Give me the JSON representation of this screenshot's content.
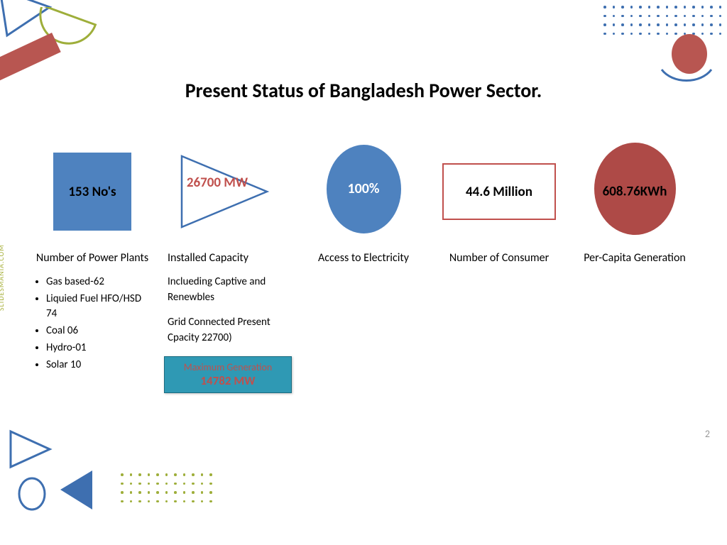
{
  "title": "Present Status of Bangladesh Power Sector.",
  "page_number": "2",
  "watermark": "SLIDESMANIA.COM",
  "colors": {
    "blue": "#4e82bf",
    "red_accent": "#c0504d",
    "red_fill": "#ae4a47",
    "teal": "#2f99b4",
    "olive": "#9eae3a",
    "dot_blue": "#3e6fb0",
    "dot_olive": "#9eae3a"
  },
  "cols": [
    {
      "shape": "square",
      "value": "153 No's",
      "label": "Number of Power Plants",
      "bullets": [
        "Gas based-62",
        "Liquied Fuel HFO/HSD 74",
        "Coal 06",
        "Hydro-01",
        "Solar 10"
      ]
    },
    {
      "shape": "triangle",
      "value": "26700 MW",
      "label": "Installed Capacity",
      "body_lines": [
        "Inclueding Captive and Renewbles",
        "",
        "Grid Connected Present Cpacity 22700)"
      ],
      "max_gen": {
        "title": "Maximum Generation",
        "value": "14782 MW"
      }
    },
    {
      "shape": "ellipse-blue",
      "value": "100%",
      "label": "Access to Electricity"
    },
    {
      "shape": "rect-outline",
      "value": "44.6 Million",
      "label": "Number of Consumer"
    },
    {
      "shape": "ellipse-red",
      "value": "608.76KWh",
      "label": "Per-Capita Generation"
    }
  ],
  "decor": {
    "tl_triangle": {
      "stroke": "#3e6fb0"
    },
    "tl_semi": {
      "stroke": "#9eae3a"
    },
    "tl_bar": {
      "fill": "#b85651"
    },
    "tr_dots": {
      "cols": 14,
      "rows": 4,
      "color": "#3e6fb0"
    },
    "tr_circle": {
      "fill": "#b85651"
    },
    "tr_arc": {
      "stroke": "#3e6fb0"
    },
    "bl_triangle_outline": {
      "stroke": "#3e6fb0"
    },
    "bl_circle_outline": {
      "stroke": "#3e6fb0"
    },
    "bl_triangle_fill": {
      "fill": "#3e6fb0"
    },
    "bl_dots": {
      "cols": 11,
      "rows": 4,
      "color": "#9eae3a"
    }
  }
}
